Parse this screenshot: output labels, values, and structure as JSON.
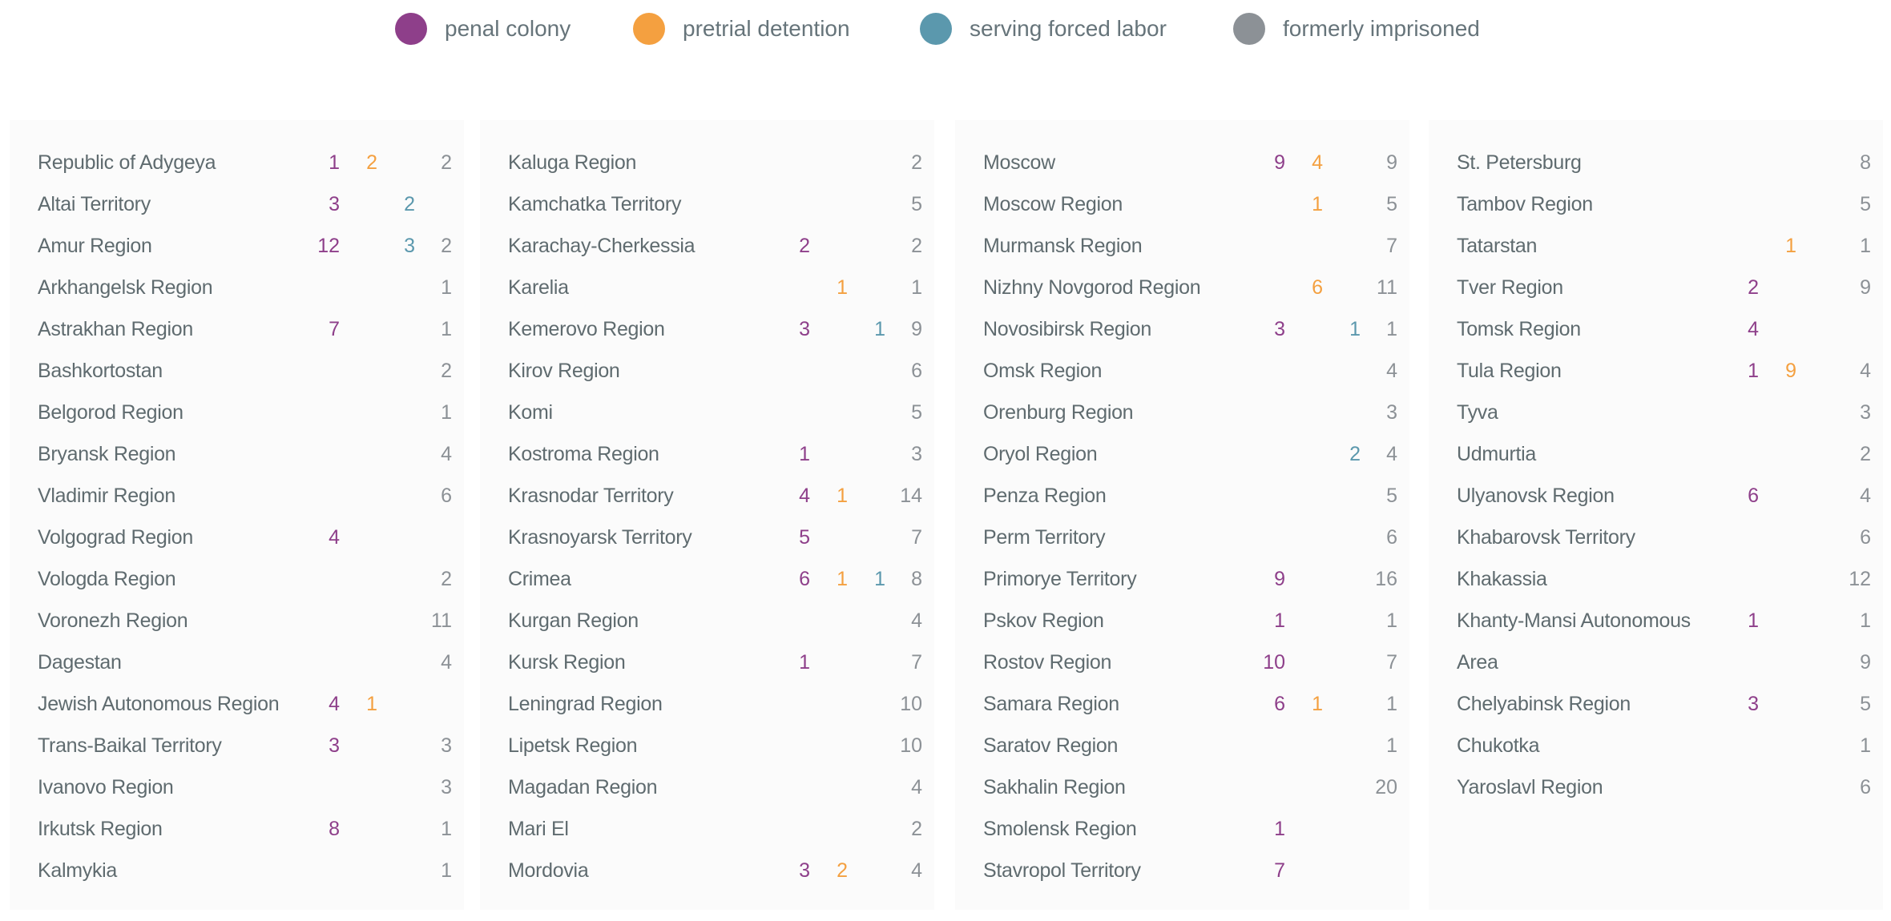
{
  "legend": [
    {
      "label": "penal colony",
      "color": "#8e3f8a"
    },
    {
      "label": "pretrial detention",
      "color": "#f4a040"
    },
    {
      "label": "serving forced labor",
      "color": "#5b98ad"
    },
    {
      "label": "formerly imprisoned",
      "color": "#8c9196"
    }
  ],
  "columns": [
    {
      "rows": [
        [
          "Republic of Adygeya",
          1,
          2,
          null,
          2
        ],
        [
          "Altai Territory",
          3,
          null,
          2,
          null
        ],
        [
          "Amur Region",
          12,
          null,
          3,
          2
        ],
        [
          "Arkhangelsk Region",
          null,
          null,
          null,
          1
        ],
        [
          "Astrakhan Region",
          7,
          null,
          null,
          1
        ],
        [
          "Bashkortostan",
          null,
          null,
          null,
          2
        ],
        [
          "Belgorod Region",
          null,
          null,
          null,
          1
        ],
        [
          "Bryansk Region",
          null,
          null,
          null,
          4
        ],
        [
          "Vladimir Region",
          null,
          null,
          null,
          6
        ],
        [
          "Volgograd Region",
          4,
          null,
          null,
          null
        ],
        [
          "Vologda Region",
          null,
          null,
          null,
          2
        ],
        [
          "Voronezh Region",
          null,
          null,
          null,
          11
        ],
        [
          "Dagestan",
          null,
          null,
          null,
          4
        ],
        [
          "Jewish Autonomous Region",
          4,
          1,
          null,
          null
        ],
        [
          "Trans-Baikal Territory",
          3,
          null,
          null,
          3
        ],
        [
          "Ivanovo Region",
          null,
          null,
          null,
          3
        ],
        [
          "Irkutsk Region",
          8,
          null,
          null,
          1
        ],
        [
          "Kalmykia",
          null,
          null,
          null,
          1
        ]
      ]
    },
    {
      "rows": [
        [
          "Kaluga Region",
          null,
          null,
          null,
          2
        ],
        [
          "Kamchatka Territory",
          null,
          null,
          null,
          5
        ],
        [
          "Karachay-Cherkessia",
          2,
          null,
          null,
          2
        ],
        [
          "Karelia",
          null,
          1,
          null,
          1
        ],
        [
          "Kemerovo Region",
          3,
          null,
          1,
          9
        ],
        [
          "Kirov Region",
          null,
          null,
          null,
          6
        ],
        [
          "Komi",
          null,
          null,
          null,
          5
        ],
        [
          "Kostroma Region",
          1,
          null,
          null,
          3
        ],
        [
          "Krasnodar Territory",
          4,
          1,
          null,
          14
        ],
        [
          "Krasnoyarsk Territory",
          5,
          null,
          null,
          7
        ],
        [
          "Crimea",
          6,
          1,
          1,
          8
        ],
        [
          "Kurgan Region",
          null,
          null,
          null,
          4
        ],
        [
          "Kursk Region",
          1,
          null,
          null,
          7
        ],
        [
          "Leningrad Region",
          null,
          null,
          null,
          10
        ],
        [
          "Lipetsk Region",
          null,
          null,
          null,
          10
        ],
        [
          "Magadan Region",
          null,
          null,
          null,
          4
        ],
        [
          "Mari El",
          null,
          null,
          null,
          2
        ],
        [
          "Mordovia",
          3,
          2,
          null,
          4
        ]
      ]
    },
    {
      "rows": [
        [
          "Moscow",
          9,
          4,
          null,
          9
        ],
        [
          "Moscow Region",
          null,
          1,
          null,
          5
        ],
        [
          "Murmansk Region",
          null,
          null,
          null,
          7
        ],
        [
          "Nizhny Novgorod Region",
          null,
          6,
          null,
          11
        ],
        [
          "Novosibirsk Region",
          3,
          null,
          1,
          1
        ],
        [
          "Omsk Region",
          null,
          null,
          null,
          4
        ],
        [
          "Orenburg Region",
          null,
          null,
          null,
          3
        ],
        [
          "Oryol Region",
          null,
          null,
          2,
          4
        ],
        [
          "Penza Region",
          null,
          null,
          null,
          5
        ],
        [
          "Perm Territory",
          null,
          null,
          null,
          6
        ],
        [
          "Primorye Territory",
          9,
          null,
          null,
          16
        ],
        [
          "Pskov Region",
          1,
          null,
          null,
          1
        ],
        [
          "Rostov Region",
          10,
          null,
          null,
          7
        ],
        [
          "Samara Region",
          6,
          1,
          null,
          1
        ],
        [
          "Saratov Region",
          null,
          null,
          null,
          1
        ],
        [
          "Sakhalin Region",
          null,
          null,
          null,
          20
        ],
        [
          "Smolensk Region",
          1,
          null,
          null,
          null
        ],
        [
          "Stavropol Territory",
          7,
          null,
          null,
          null
        ]
      ]
    },
    {
      "rows": [
        [
          "St. Petersburg",
          null,
          null,
          null,
          8
        ],
        [
          "Tambov Region",
          null,
          null,
          null,
          5
        ],
        [
          "Tatarstan",
          null,
          1,
          null,
          1
        ],
        [
          "Tver Region",
          2,
          null,
          null,
          9
        ],
        [
          "Tomsk Region",
          4,
          null,
          null,
          null
        ],
        [
          "Tula Region",
          1,
          9,
          null,
          4
        ],
        [
          "Tyva",
          null,
          null,
          null,
          3
        ],
        [
          "Udmurtia",
          null,
          null,
          null,
          2
        ],
        [
          "Ulyanovsk Region",
          6,
          null,
          null,
          4
        ],
        [
          "Khabarovsk Territory",
          null,
          null,
          null,
          6
        ],
        [
          "Khakassia",
          null,
          null,
          null,
          12
        ],
        [
          "Khanty-Mansi Autonomous",
          1,
          null,
          null,
          1
        ],
        [
          "Area",
          null,
          null,
          null,
          9
        ],
        [
          "Chelyabinsk Region",
          3,
          null,
          null,
          5
        ],
        [
          "Chukotka",
          null,
          null,
          null,
          1
        ],
        [
          "Yaroslavl Region",
          null,
          null,
          null,
          6
        ]
      ]
    }
  ]
}
